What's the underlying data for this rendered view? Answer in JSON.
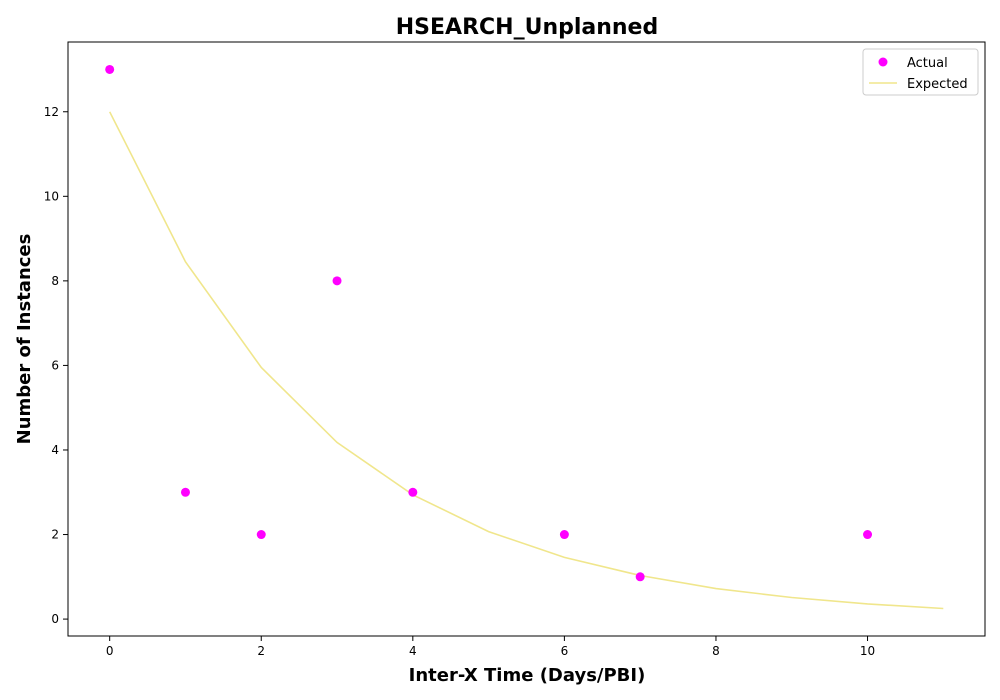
{
  "chart_data": {
    "type": "scatter",
    "title": "HSEARCH_Unplanned",
    "xlabel": "Inter-X Time (Days/PBI)",
    "ylabel": "Number of Instances",
    "xlim": [
      -0.55,
      11.55
    ],
    "ylim": [
      -0.4,
      13.65
    ],
    "xticks": [
      0,
      2,
      4,
      6,
      8,
      10
    ],
    "yticks": [
      0,
      2,
      4,
      6,
      8,
      10,
      12
    ],
    "grid": false,
    "legend_position": "top-right",
    "series": [
      {
        "name": "Actual",
        "kind": "scatter",
        "color": "#ff00ff",
        "x": [
          0,
          1,
          2,
          3,
          4,
          6,
          7,
          10
        ],
        "y": [
          13,
          3,
          2,
          8,
          3,
          2,
          1,
          2
        ]
      },
      {
        "name": "Expected",
        "kind": "line",
        "color": "#f0e68c",
        "x": [
          0,
          1,
          2,
          3,
          4,
          5,
          6,
          7,
          8,
          9,
          10,
          11
        ],
        "y": [
          12.0,
          8.45,
          5.95,
          4.18,
          2.94,
          2.07,
          1.46,
          1.03,
          0.72,
          0.51,
          0.36,
          0.25
        ]
      }
    ]
  }
}
